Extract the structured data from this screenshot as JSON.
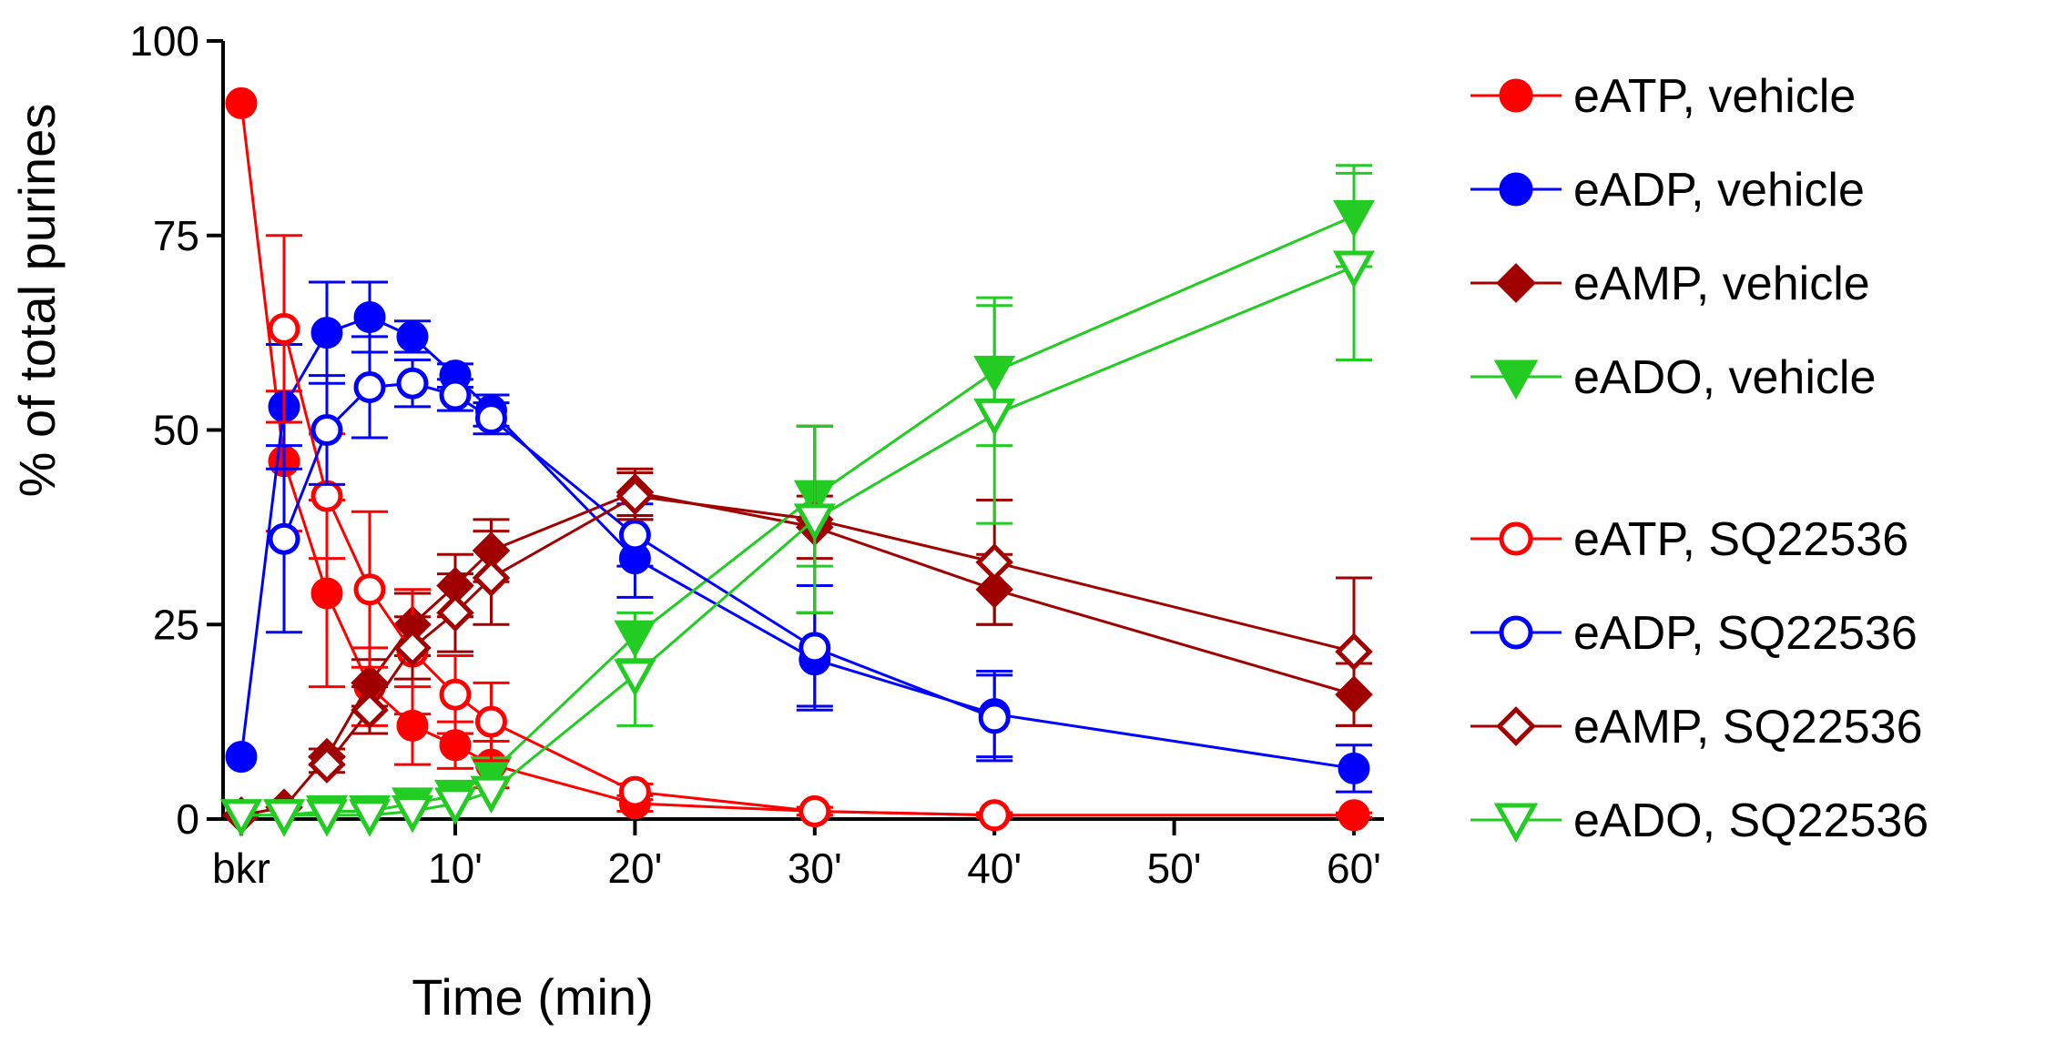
{
  "chart_data": {
    "type": "line",
    "title": "",
    "xlabel": "Time (min)",
    "ylabel": "% of total purines",
    "xlim": [
      -1,
      61
    ],
    "ylim": [
      0,
      100
    ],
    "x_ticks": [
      {
        "value": 0,
        "label": "bkr"
      },
      {
        "value": 10,
        "label": "10'"
      },
      {
        "value": 20,
        "label": "20'"
      },
      {
        "value": 30,
        "label": "30'"
      },
      {
        "value": 40,
        "label": "40'"
      },
      {
        "value": 50,
        "label": "50'"
      },
      {
        "value": 60,
        "label": "60'"
      }
    ],
    "y_ticks": [
      {
        "value": 0,
        "label": "0"
      },
      {
        "value": 25,
        "label": "25"
      },
      {
        "value": 50,
        "label": "50"
      },
      {
        "value": 75,
        "label": "75"
      },
      {
        "value": 100,
        "label": "100"
      }
    ],
    "legend_position": "right",
    "series": [
      {
        "name": "eATP, vehicle",
        "color": "#ff0000",
        "marker": "circle",
        "filled": true,
        "points": [
          [
            0,
            92,
            0
          ],
          [
            2,
            46,
            9
          ],
          [
            4,
            29,
            12
          ],
          [
            6,
            17,
            5
          ],
          [
            8,
            12,
            5
          ],
          [
            10,
            9.5,
            3
          ],
          [
            12,
            7,
            3
          ],
          [
            20,
            2,
            1
          ],
          [
            30,
            1,
            0.5
          ],
          [
            40,
            0.5,
            0.3
          ],
          [
            60,
            0.5,
            0.3
          ]
        ]
      },
      {
        "name": "eADP, vehicle",
        "color": "#0000ff",
        "marker": "circle",
        "filled": true,
        "points": [
          [
            0,
            8,
            0
          ],
          [
            2,
            53,
            8
          ],
          [
            4,
            62.5,
            6.5
          ],
          [
            6,
            64.5,
            4.5
          ],
          [
            8,
            62,
            2
          ],
          [
            10,
            57,
            1.5
          ],
          [
            12,
            52.5,
            2
          ],
          [
            20,
            33.5,
            5
          ],
          [
            30,
            20.5,
            6
          ],
          [
            40,
            13.5,
            5.5
          ],
          [
            60,
            6.5,
            3
          ]
        ]
      },
      {
        "name": "eAMP, vehicle",
        "color": "#a00000",
        "marker": "diamond",
        "filled": true,
        "points": [
          [
            0,
            0.5,
            0
          ],
          [
            2,
            1.5,
            0
          ],
          [
            4,
            8,
            1
          ],
          [
            6,
            17.5,
            3
          ],
          [
            8,
            25,
            4
          ],
          [
            10,
            30,
            4
          ],
          [
            12,
            34.5,
            4
          ],
          [
            20,
            42,
            3
          ],
          [
            30,
            37.5,
            4
          ],
          [
            40,
            29.5,
            4.5
          ],
          [
            60,
            16,
            4
          ]
        ]
      },
      {
        "name": "eADO, vehicle",
        "color": "#22cc22",
        "marker": "triangle-down",
        "filled": true,
        "points": [
          [
            0,
            0.5,
            0
          ],
          [
            2,
            0.5,
            0
          ],
          [
            4,
            1,
            0
          ],
          [
            6,
            1,
            0
          ],
          [
            8,
            2,
            0
          ],
          [
            10,
            3,
            0
          ],
          [
            12,
            6,
            0
          ],
          [
            20,
            23.5,
            3
          ],
          [
            30,
            41.5,
            9
          ],
          [
            40,
            57.5,
            9.5
          ],
          [
            60,
            77.5,
            6.5
          ]
        ]
      },
      {
        "name": "eATP, SQ22536",
        "color": "#ff0000",
        "marker": "circle",
        "filled": false,
        "points": [
          [
            2,
            63,
            12
          ],
          [
            4,
            41.5,
            8
          ],
          [
            6,
            29.5,
            10
          ],
          [
            8,
            21.5,
            8
          ],
          [
            10,
            16,
            5
          ],
          [
            12,
            12.5,
            5
          ],
          [
            20,
            3.5,
            1
          ],
          [
            30,
            1,
            0.5
          ],
          [
            40,
            0.5,
            0.3
          ]
        ]
      },
      {
        "name": "eADP, SQ22536",
        "color": "#0000ff",
        "marker": "circle",
        "filled": false,
        "points": [
          [
            2,
            36,
            12
          ],
          [
            4,
            50,
            7
          ],
          [
            6,
            55.5,
            6.5
          ],
          [
            8,
            56,
            3
          ],
          [
            10,
            54.5,
            2
          ],
          [
            12,
            51.5,
            2
          ],
          [
            20,
            36.5,
            4
          ],
          [
            30,
            22,
            8
          ],
          [
            40,
            13,
            5.5
          ]
        ]
      },
      {
        "name": "eAMP, SQ22536",
        "color": "#a00000",
        "marker": "diamond",
        "filled": false,
        "points": [
          [
            4,
            7,
            1
          ],
          [
            6,
            14,
            3
          ],
          [
            8,
            22,
            4
          ],
          [
            10,
            26.5,
            5
          ],
          [
            12,
            31,
            6
          ],
          [
            20,
            41.5,
            3
          ],
          [
            30,
            38.5,
            12
          ],
          [
            40,
            33,
            8
          ],
          [
            60,
            21.5,
            9.5
          ]
        ]
      },
      {
        "name": "eADO, SQ22536",
        "color": "#22cc22",
        "marker": "triangle-down",
        "filled": false,
        "points": [
          [
            0,
            0.5,
            0
          ],
          [
            2,
            0.5,
            0
          ],
          [
            4,
            0.5,
            0
          ],
          [
            6,
            0.5,
            0
          ],
          [
            8,
            1,
            0
          ],
          [
            10,
            2,
            0
          ],
          [
            12,
            3.5,
            0
          ],
          [
            20,
            18.5,
            6.5
          ],
          [
            30,
            38.5,
            12
          ],
          [
            40,
            52,
            14
          ],
          [
            60,
            71,
            12
          ]
        ]
      }
    ],
    "legend_groups": [
      [
        "eATP, vehicle",
        "eADP, vehicle",
        "eAMP, vehicle",
        "eADO, vehicle"
      ],
      [
        "eATP, SQ22536",
        "eADP, SQ22536",
        "eAMP, SQ22536",
        "eADO, SQ22536"
      ]
    ]
  }
}
